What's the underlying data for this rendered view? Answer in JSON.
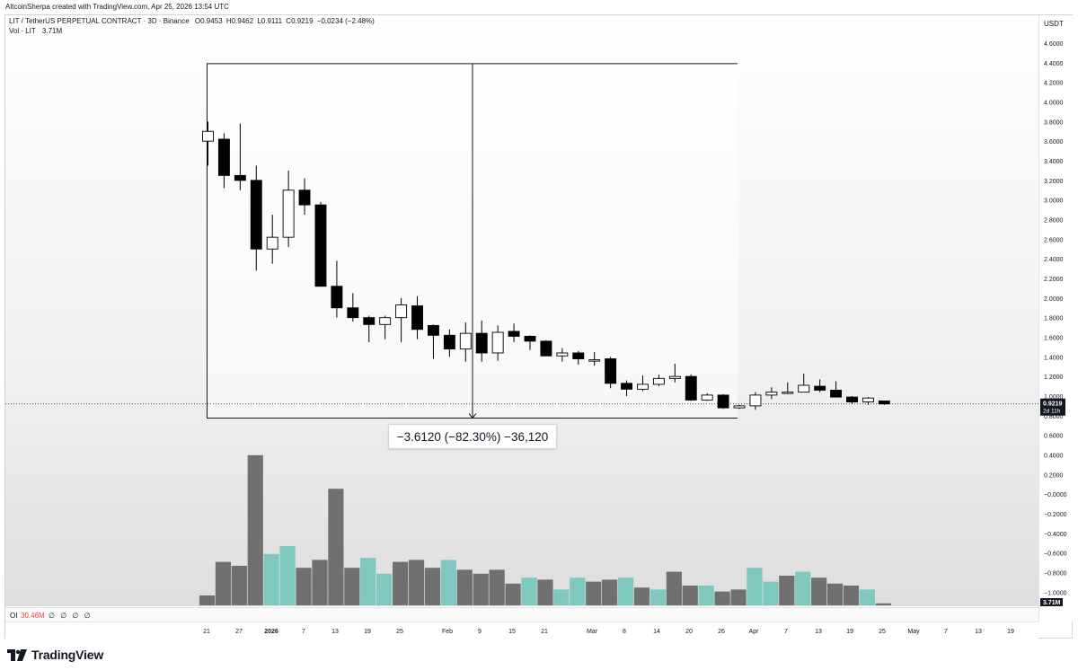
{
  "credit": "AltcoinSherpa created with TradingView.com, Apr 25, 2026 13:54 UTC",
  "symbol_line": {
    "title": "LIT / TetherUS PERPETUAL CONTRACT · 3D · Binance",
    "o_label": "O",
    "o_value": "0.9453",
    "h_label": "H",
    "h_value": "0.9462",
    "l_label": "L",
    "l_value": "0.9111",
    "c_label": "C",
    "c_value": "0.9219",
    "change": "−0.0234 (−2.48%)"
  },
  "vol_line": {
    "label": "Vol · LIT",
    "value": "3.71M"
  },
  "oi_line": {
    "label": "OI",
    "value": "30.46M",
    "extra": "∅ ∅ ∅ ∅"
  },
  "currency": "USDT",
  "last_price_badge": {
    "price": "0.9219",
    "countdown": "2d 11h"
  },
  "volume_badge": "3.71M",
  "measure_label": "−3.6120 (−82.30%) −36,120",
  "brand": "TradingView",
  "colors": {
    "bull_body": "#ffffff",
    "bear_body": "#000000",
    "candle_outline": "#000000",
    "vol_up": "#7fc8c0",
    "vol_down": "#707070",
    "badge_bg": "#131722"
  },
  "chart_data": {
    "type": "candlestick",
    "y_axis": {
      "unit": "USDT",
      "ticks": [
        "4.6000",
        "4.4000",
        "4.2000",
        "4.0000",
        "3.8000",
        "3.6000",
        "3.4000",
        "3.2000",
        "3.0000",
        "2.8000",
        "2.6000",
        "2.4000",
        "2.2000",
        "2.0000",
        "1.8000",
        "1.6000",
        "1.4000",
        "1.2000",
        "1.0000",
        "0.8000",
        "0.6000",
        "0.4000",
        "0.2000",
        "−0.0000",
        "−0.2000",
        "−0.4000",
        "−0.6000",
        "−0.8000",
        "−1.0000"
      ],
      "tick_values": [
        4.6,
        4.4,
        4.2,
        4.0,
        3.8,
        3.6,
        3.4,
        3.2,
        3.0,
        2.8,
        2.6,
        2.4,
        2.2,
        2.0,
        1.8,
        1.6,
        1.4,
        1.2,
        1.0,
        0.8,
        0.6,
        0.4,
        0.2,
        0.0,
        -0.2,
        -0.4,
        -0.6,
        -0.8,
        -1.0
      ],
      "range": [
        -1.0,
        4.7
      ]
    },
    "x_axis": {
      "ticks": [
        "21",
        "27",
        "2026",
        "7",
        "13",
        "19",
        "25",
        "Feb",
        "9",
        "15",
        "21",
        "Mar",
        "8",
        "14",
        "20",
        "26",
        "Apr",
        "7",
        "13",
        "19",
        "25",
        "May",
        "7",
        "13",
        "19"
      ],
      "bold_ticks": [
        "2026"
      ]
    },
    "candles": [
      {
        "o": 3.6,
        "h": 3.8,
        "l": 3.35,
        "c": 3.7
      },
      {
        "o": 3.62,
        "h": 3.68,
        "l": 3.12,
        "c": 3.25
      },
      {
        "o": 3.25,
        "h": 3.78,
        "l": 3.1,
        "c": 3.2
      },
      {
        "o": 3.2,
        "h": 3.35,
        "l": 2.28,
        "c": 2.5
      },
      {
        "o": 2.5,
        "h": 2.85,
        "l": 2.35,
        "c": 2.62
      },
      {
        "o": 2.62,
        "h": 3.3,
        "l": 2.52,
        "c": 3.1
      },
      {
        "o": 3.1,
        "h": 3.22,
        "l": 2.85,
        "c": 2.95
      },
      {
        "o": 2.95,
        "h": 2.98,
        "l": 2.12,
        "c": 2.12
      },
      {
        "o": 2.12,
        "h": 2.38,
        "l": 1.8,
        "c": 1.9
      },
      {
        "o": 1.9,
        "h": 2.05,
        "l": 1.76,
        "c": 1.8
      },
      {
        "o": 1.8,
        "h": 1.82,
        "l": 1.55,
        "c": 1.73
      },
      {
        "o": 1.73,
        "h": 1.82,
        "l": 1.58,
        "c": 1.8
      },
      {
        "o": 1.8,
        "h": 2.0,
        "l": 1.55,
        "c": 1.93
      },
      {
        "o": 1.92,
        "h": 2.02,
        "l": 1.58,
        "c": 1.68
      },
      {
        "o": 1.72,
        "h": 1.73,
        "l": 1.38,
        "c": 1.62
      },
      {
        "o": 1.62,
        "h": 1.68,
        "l": 1.4,
        "c": 1.48
      },
      {
        "o": 1.48,
        "h": 1.75,
        "l": 1.35,
        "c": 1.64
      },
      {
        "o": 1.64,
        "h": 1.77,
        "l": 1.35,
        "c": 1.44
      },
      {
        "o": 1.44,
        "h": 1.72,
        "l": 1.36,
        "c": 1.65
      },
      {
        "o": 1.66,
        "h": 1.74,
        "l": 1.55,
        "c": 1.61
      },
      {
        "o": 1.61,
        "h": 1.62,
        "l": 1.47,
        "c": 1.56
      },
      {
        "o": 1.56,
        "h": 1.57,
        "l": 1.41,
        "c": 1.41
      },
      {
        "o": 1.41,
        "h": 1.49,
        "l": 1.35,
        "c": 1.44
      },
      {
        "o": 1.44,
        "h": 1.46,
        "l": 1.32,
        "c": 1.38
      },
      {
        "o": 1.37,
        "h": 1.45,
        "l": 1.31,
        "c": 1.37
      },
      {
        "o": 1.38,
        "h": 1.4,
        "l": 1.08,
        "c": 1.13
      },
      {
        "o": 1.13,
        "h": 1.16,
        "l": 1.0,
        "c": 1.07
      },
      {
        "o": 1.07,
        "h": 1.21,
        "l": 1.05,
        "c": 1.12
      },
      {
        "o": 1.12,
        "h": 1.22,
        "l": 1.1,
        "c": 1.18
      },
      {
        "o": 1.18,
        "h": 1.33,
        "l": 1.14,
        "c": 1.2
      },
      {
        "o": 1.2,
        "h": 1.22,
        "l": 0.95,
        "c": 0.96
      },
      {
        "o": 0.96,
        "h": 1.03,
        "l": 0.95,
        "c": 1.01
      },
      {
        "o": 1.01,
        "h": 1.02,
        "l": 0.87,
        "c": 0.88
      },
      {
        "o": 0.88,
        "h": 0.91,
        "l": 0.87,
        "c": 0.9
      },
      {
        "o": 0.9,
        "h": 1.04,
        "l": 0.86,
        "c": 1.01
      },
      {
        "o": 1.01,
        "h": 1.09,
        "l": 0.97,
        "c": 1.04
      },
      {
        "o": 1.03,
        "h": 1.14,
        "l": 1.02,
        "c": 1.04
      },
      {
        "o": 1.04,
        "h": 1.23,
        "l": 1.04,
        "c": 1.11
      },
      {
        "o": 1.1,
        "h": 1.17,
        "l": 1.04,
        "c": 1.06
      },
      {
        "o": 1.06,
        "h": 1.15,
        "l": 0.99,
        "c": 0.99
      },
      {
        "o": 0.99,
        "h": 1.0,
        "l": 0.92,
        "c": 0.94
      },
      {
        "o": 0.94,
        "h": 0.99,
        "l": 0.91,
        "c": 0.98
      },
      {
        "o": 0.95,
        "h": 0.95,
        "l": 0.91,
        "c": 0.92
      }
    ],
    "volume_direction": [
      "down",
      "down",
      "down",
      "down",
      "up",
      "up",
      "down",
      "down",
      "down",
      "down",
      "up",
      "up",
      "down",
      "down",
      "down",
      "up",
      "down",
      "down",
      "down",
      "down",
      "up",
      "down",
      "up",
      "up",
      "down",
      "down",
      "up",
      "down",
      "up",
      "down",
      "down",
      "up",
      "down",
      "down",
      "up",
      "up",
      "down",
      "up",
      "down",
      "down",
      "down",
      "up",
      "down"
    ],
    "volume_relative": [
      0.05,
      0.22,
      0.2,
      0.76,
      0.26,
      0.3,
      0.19,
      0.23,
      0.59,
      0.19,
      0.24,
      0.16,
      0.22,
      0.23,
      0.19,
      0.23,
      0.18,
      0.16,
      0.18,
      0.11,
      0.14,
      0.13,
      0.08,
      0.14,
      0.12,
      0.13,
      0.14,
      0.09,
      0.08,
      0.17,
      0.1,
      0.1,
      0.07,
      0.08,
      0.19,
      0.12,
      0.15,
      0.17,
      0.14,
      0.11,
      0.1,
      0.08,
      0.01
    ],
    "measure": {
      "from_price": 4.39,
      "to_price": 0.776,
      "change": "−3.6120",
      "percent": "−82.30%"
    }
  }
}
